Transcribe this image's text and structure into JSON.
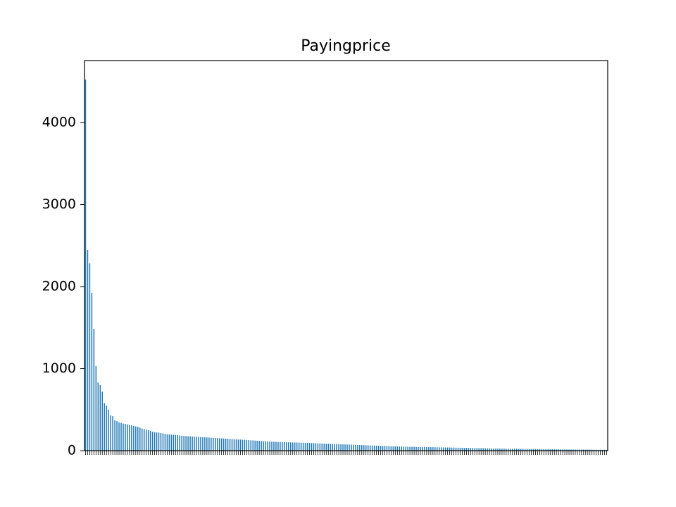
{
  "chart_data": {
    "type": "bar",
    "title": "Payingprice",
    "color": "#1f77b4",
    "values": [
      4524,
      2446,
      2283,
      1923,
      1485,
      1030,
      830,
      800,
      720,
      580,
      550,
      500,
      430,
      420,
      370,
      360,
      345,
      340,
      330,
      325,
      320,
      315,
      310,
      300,
      295,
      290,
      280,
      270,
      260,
      255,
      250,
      240,
      230,
      225,
      222,
      220,
      215,
      210,
      205,
      200,
      198,
      195,
      193,
      190,
      188,
      185,
      182,
      180,
      178,
      176,
      175,
      173,
      171,
      170,
      168,
      166,
      165,
      163,
      161,
      160,
      158,
      156,
      155,
      153,
      151,
      150,
      148,
      146,
      145,
      143,
      141,
      140,
      138,
      136,
      135,
      133,
      131,
      130,
      128,
      126,
      125,
      123,
      121,
      120,
      118,
      116,
      115,
      113,
      111,
      110,
      109,
      108,
      107,
      106,
      105,
      104,
      103,
      102,
      101,
      100,
      100,
      99,
      98,
      97,
      96,
      95,
      94,
      93,
      92,
      91,
      90,
      89,
      88,
      87,
      86,
      85,
      84,
      83,
      82,
      81,
      80,
      79,
      78,
      77,
      76,
      75,
      74,
      73,
      72,
      71,
      70,
      69,
      68,
      67,
      66,
      65,
      64,
      63,
      62,
      61,
      60,
      59,
      58,
      57,
      56,
      55,
      54,
      53,
      52,
      51,
      50,
      49,
      49,
      48,
      48,
      47,
      47,
      46,
      46,
      45,
      45,
      44,
      44,
      43,
      43,
      42,
      42,
      41,
      41,
      40,
      40,
      39,
      39,
      38,
      38,
      37,
      37,
      36,
      36,
      35,
      35,
      34,
      34,
      33,
      33,
      32,
      32,
      31,
      31,
      30,
      30,
      29,
      29,
      28,
      28,
      27,
      27,
      26,
      26,
      25,
      25,
      24,
      24,
      24,
      23,
      23,
      23,
      22,
      22,
      22,
      21,
      21,
      21,
      20,
      20,
      20,
      19,
      19,
      19,
      18,
      18,
      18,
      17,
      17,
      17,
      16,
      16,
      16,
      15,
      15,
      15,
      14,
      14,
      14,
      14,
      13,
      13,
      13,
      13,
      12,
      12,
      12,
      12,
      11,
      11,
      11,
      11,
      10,
      10,
      10
    ],
    "ylim": [
      0,
      4755
    ],
    "yticks": [
      0,
      1000,
      2000,
      3000,
      4000
    ]
  }
}
